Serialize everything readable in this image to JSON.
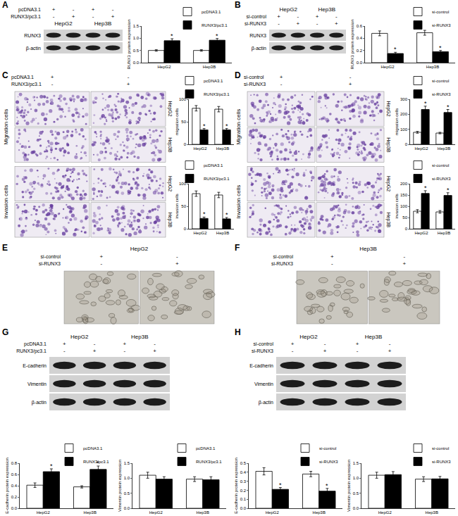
{
  "chart_data": [
    {
      "type": "bar",
      "ylabel": "RUNX3 protein expression",
      "categories": [
        "HepG2",
        "Hep3B"
      ],
      "series": [
        {
          "name": "pcDNA3.1",
          "color": "#ffffff",
          "values": [
            0.5,
            0.5
          ],
          "errors": [
            0.03,
            0.03
          ]
        },
        {
          "name": "RUNX3/pc3.1",
          "color": "#000000",
          "values": [
            0.9,
            0.92
          ],
          "errors": [
            0.08,
            0.07
          ]
        }
      ],
      "ylim": [
        0,
        1.5
      ],
      "yticks": [
        {
          "value": 0,
          "label": "0.0"
        },
        0.5,
        {
          "value": 1,
          "label": "1.0"
        },
        1.5
      ],
      "grid": false,
      "legend": "upper right",
      "annotations": [
        {
          "text": "*",
          "category": "HepG2",
          "series": "RUNX3/pc3.1"
        },
        {
          "text": "*",
          "category": "Hep3B",
          "series": "RUNX3/pc3.1"
        }
      ]
    },
    {
      "type": "bar",
      "ylabel": "RUNX3 protein expression",
      "categories": [
        "HepG2",
        "Hep3B"
      ],
      "series": [
        {
          "name": "si-control",
          "color": "#ffffff",
          "values": [
            0.48,
            0.49
          ],
          "errors": [
            0.04,
            0.04
          ]
        },
        {
          "name": "si-RUNX3",
          "color": "#000000",
          "values": [
            0.15,
            0.18
          ],
          "errors": [
            0.02,
            0.02
          ]
        }
      ],
      "ylim": [
        0,
        0.6
      ],
      "yticks": [
        {
          "value": 0,
          "label": "0.0"
        },
        0.2,
        0.4,
        0.6
      ],
      "grid": false,
      "legend": "upper right",
      "annotations": [
        {
          "text": "*",
          "category": "HepG2",
          "series": "si-RUNX3"
        },
        {
          "text": "*",
          "category": "Hep3B",
          "series": "si-RUNX3"
        }
      ]
    },
    {
      "type": "bar",
      "ylabel": "migration cells",
      "categories": [
        "HepG2",
        "Hep3B"
      ],
      "series": [
        {
          "name": "pcDNA3.1",
          "color": "#ffffff",
          "values": [
            80,
            78
          ],
          "errors": [
            6,
            6
          ]
        },
        {
          "name": "RUNX3/pc3.1",
          "color": "#000000",
          "values": [
            32,
            32
          ],
          "errors": [
            3,
            3
          ]
        }
      ],
      "ylim": [
        0,
        100
      ],
      "yticks": [
        0,
        50,
        100
      ],
      "grid": false,
      "legend": "upper right",
      "annotations": [
        {
          "text": "*",
          "category": "HepG2",
          "series": "RUNX3/pc3.1"
        },
        {
          "text": "*",
          "category": "Hep3B",
          "series": "RUNX3/pc3.1"
        }
      ]
    },
    {
      "type": "bar",
      "ylabel": "invasion cells",
      "categories": [
        "HepG2",
        "Hep3B"
      ],
      "series": [
        {
          "name": "pcDNA3.1",
          "color": "#ffffff",
          "values": [
            78,
            75
          ],
          "errors": [
            6,
            6
          ]
        },
        {
          "name": "RUNX3/pc3.1",
          "color": "#000000",
          "values": [
            23,
            22
          ],
          "errors": [
            3,
            3
          ]
        }
      ],
      "ylim": [
        0,
        100
      ],
      "yticks": [
        0,
        50,
        100
      ],
      "grid": false,
      "legend": "upper right",
      "annotations": [
        {
          "text": "*",
          "category": "HepG2",
          "series": "RUNX3/pc3.1"
        },
        {
          "text": "*",
          "category": "Hep3B",
          "series": "RUNX3/pc3.1"
        }
      ]
    },
    {
      "type": "bar",
      "ylabel": "migration cells",
      "categories": [
        "HepG2",
        "Hep3B"
      ],
      "series": [
        {
          "name": "si-control",
          "color": "#ffffff",
          "values": [
            80,
            75
          ],
          "errors": [
            6,
            5
          ]
        },
        {
          "name": "si-RUNX3",
          "color": "#000000",
          "values": [
            232,
            212
          ],
          "errors": [
            22,
            20
          ]
        }
      ],
      "ylim": [
        0,
        300
      ],
      "yticks": [
        0,
        100,
        200,
        300
      ],
      "grid": false,
      "legend": "upper right",
      "annotations": [
        {
          "text": "*",
          "category": "HepG2",
          "series": "si-RUNX3"
        },
        {
          "text": "*",
          "category": "Hep3B",
          "series": "si-RUNX3"
        }
      ]
    },
    {
      "type": "bar",
      "ylabel": "invasion cells",
      "categories": [
        "HepG2",
        "Hep3B"
      ],
      "series": [
        {
          "name": "si-control",
          "color": "#ffffff",
          "values": [
            78,
            75
          ],
          "errors": [
            7,
            6
          ]
        },
        {
          "name": "si-RUNX3",
          "color": "#000000",
          "values": [
            157,
            148
          ],
          "errors": [
            12,
            12
          ]
        }
      ],
      "ylim": [
        0,
        200
      ],
      "yticks": [
        0,
        50,
        100,
        150,
        200
      ],
      "grid": false,
      "legend": "upper right",
      "annotations": [
        {
          "text": "*",
          "category": "HepG2",
          "series": "si-RUNX3"
        },
        {
          "text": "*",
          "category": "Hep3B",
          "series": "si-RUNX3"
        }
      ]
    },
    {
      "type": "bar",
      "ylabel": "E-cadherin protein expression",
      "categories": [
        "HepG2",
        "Hep3B"
      ],
      "series": [
        {
          "name": "pcDNA3.1",
          "color": "#ffffff",
          "values": [
            0.41,
            0.38
          ],
          "errors": [
            0.04,
            0.02
          ]
        },
        {
          "name": "RUNX3/pc3.1",
          "color": "#000000",
          "values": [
            0.65,
            0.69
          ],
          "errors": [
            0.05,
            0.06
          ]
        }
      ],
      "ylim": [
        0,
        0.8
      ],
      "yticks": [
        {
          "value": 0,
          "label": "0.0"
        },
        0.2,
        0.4,
        0.6,
        0.8
      ],
      "grid": false,
      "legend": "upper right",
      "annotations": [
        {
          "text": "*",
          "category": "HepG2",
          "series": "RUNX3/pc3.1"
        },
        {
          "text": "*",
          "category": "Hep3B",
          "series": "RUNX3/pc3.1"
        }
      ]
    },
    {
      "type": "bar",
      "ylabel": "Vimentin protein expression",
      "categories": [
        "HepG2",
        "Hep3B"
      ],
      "series": [
        {
          "name": "pcDNA3.1",
          "color": "#ffffff",
          "values": [
            1.1,
            0.97
          ],
          "errors": [
            0.1,
            0.08
          ]
        },
        {
          "name": "RUNX3/pc3.1",
          "color": "#000000",
          "values": [
            0.97,
            0.95
          ],
          "errors": [
            0.08,
            0.1
          ]
        }
      ],
      "ylim": [
        0,
        1.5
      ],
      "yticks": [
        {
          "value": 0,
          "label": "0.0"
        },
        0.5,
        {
          "value": 1,
          "label": "1.0"
        },
        1.5
      ],
      "grid": false,
      "legend": "upper right"
    },
    {
      "type": "bar",
      "ylabel": "E-cadherin protein expression",
      "categories": [
        "HepG2",
        "Hep3B"
      ],
      "series": [
        {
          "name": "si-control",
          "color": "#ffffff",
          "values": [
            0.41,
            0.38
          ],
          "errors": [
            0.04,
            0.03
          ]
        },
        {
          "name": "si-RUNX3",
          "color": "#000000",
          "values": [
            0.21,
            0.19
          ],
          "errors": [
            0.02,
            0.03
          ]
        }
      ],
      "ylim": [
        0,
        0.5
      ],
      "yticks": [
        {
          "value": 0,
          "label": "0.0"
        },
        0.1,
        0.2,
        0.3,
        0.4,
        0.5
      ],
      "grid": false,
      "legend": "upper right",
      "annotations": [
        {
          "text": "*",
          "category": "HepG2",
          "series": "si-RUNX3"
        },
        {
          "text": "*",
          "category": "Hep3B",
          "series": "si-RUNX3"
        }
      ]
    },
    {
      "type": "bar",
      "ylabel": "Vimentin protein expression",
      "categories": [
        "HepG2",
        "Hep3B"
      ],
      "series": [
        {
          "name": "si-control",
          "color": "#ffffff",
          "values": [
            1.1,
            0.97
          ],
          "errors": [
            0.1,
            0.08
          ]
        },
        {
          "name": "si-RUNX3",
          "color": "#000000",
          "values": [
            1.12,
            0.98
          ],
          "errors": [
            0.1,
            0.08
          ]
        }
      ],
      "ylim": [
        0,
        1.5
      ],
      "yticks": [
        {
          "value": 0,
          "label": "0.0"
        },
        0.5,
        {
          "value": 1,
          "label": "1.0"
        },
        1.5
      ],
      "grid": false,
      "legend": "upper right"
    }
  ],
  "panels": [
    {
      "letter": "A",
      "blot": {
        "header": [
          {
            "label": "pcDNA3.1",
            "signs": [
              "+",
              "-",
              "+",
              "-"
            ]
          },
          {
            "label": "RUNX3/pc3.1",
            "signs": [
              "-",
              "+",
              "-",
              "+"
            ]
          },
          {
            "groups": [
              "HepG2",
              "Hep3B"
            ]
          }
        ],
        "rows": [
          "RUNX3",
          "β-actin"
        ]
      }
    },
    {
      "letter": "B",
      "blot": {
        "header": [
          {
            "groups": [
              "HepG2",
              "Hep3B"
            ]
          },
          {
            "label": "si-control",
            "signs": [
              "+",
              "-",
              "+",
              "-"
            ]
          },
          {
            "label": "si-RUNX3",
            "signs": [
              "-",
              "+",
              "-",
              "+"
            ]
          }
        ],
        "rows": [
          "RUNX3",
          "β-actin"
        ]
      }
    },
    {
      "letter": "C",
      "images": {
        "header": [
          {
            "label": "pcDNA3.1",
            "signs": [
              "+",
              "-"
            ]
          },
          {
            "label": "RUNX3/pc3.1",
            "signs": [
              "-",
              "+"
            ]
          }
        ],
        "blocks": [
          {
            "label": "Migration cells",
            "rows": [
              "HepG2",
              "Hep3B"
            ]
          },
          {
            "label": "Invasion cells",
            "rows": [
              "HepG2",
              "Hep3B"
            ]
          }
        ]
      }
    },
    {
      "letter": "D",
      "images": {
        "header": [
          {
            "label": "si-control",
            "signs": [
              "+",
              "-"
            ]
          },
          {
            "label": "si-RUNX3",
            "signs": [
              "-",
              "+"
            ]
          }
        ],
        "blocks": [
          {
            "label": "Migration cells",
            "rows": [
              "HepG2",
              "Hep3B"
            ]
          },
          {
            "label": "Invasion cells",
            "rows": [
              "HepG2",
              "Hep3B"
            ]
          }
        ]
      }
    },
    {
      "letter": "E",
      "images": {
        "title": "HepG2",
        "header": [
          {
            "label": "si-control",
            "signs": [
              "+",
              "-"
            ]
          },
          {
            "label": "si-RUNX3",
            "signs": [
              "-",
              "+"
            ]
          }
        ]
      }
    },
    {
      "letter": "F",
      "images": {
        "title": "Hep3B",
        "header": [
          {
            "label": "si-control",
            "signs": [
              "+",
              "-"
            ]
          },
          {
            "label": "si-RUNX3",
            "signs": [
              "-",
              "+"
            ]
          }
        ]
      }
    },
    {
      "letter": "G",
      "blot": {
        "header": [
          {
            "groups": [
              "HepG2",
              "Hep3B"
            ]
          },
          {
            "label": "pcDNA3.1",
            "signs": [
              "+",
              "-",
              "+",
              "-"
            ]
          },
          {
            "label": "RUNX3/pc3.1",
            "signs": [
              "-",
              "+",
              "-",
              "+"
            ]
          }
        ],
        "rows": [
          "E-cadherin",
          "Vimentin",
          "β-actin"
        ]
      }
    },
    {
      "letter": "H",
      "blot": {
        "header": [
          {
            "groups": [
              "HepG2",
              "Hep3B"
            ]
          },
          {
            "label": "si-control",
            "signs": [
              "+",
              "-",
              "+",
              "-"
            ]
          },
          {
            "label": "si-RUNX3",
            "signs": [
              "-",
              "+",
              "-",
              "+"
            ]
          }
        ],
        "rows": [
          "E-cadherin",
          "Vimentin",
          "β-actin"
        ]
      }
    }
  ]
}
